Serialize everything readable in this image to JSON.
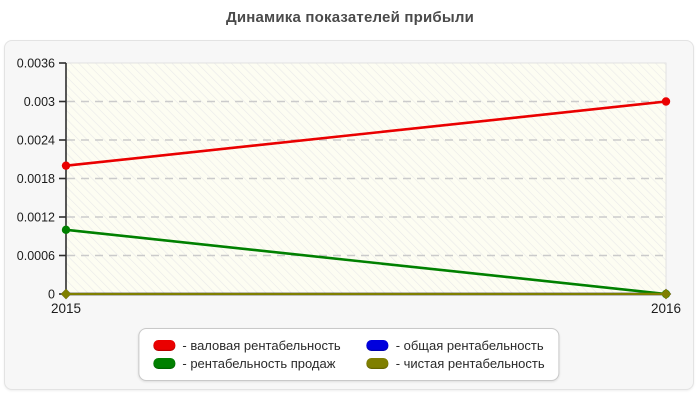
{
  "title": "Динамика показателей прибыли",
  "chart_data": {
    "type": "line",
    "x": [
      2015,
      2016
    ],
    "x_tick_labels": [
      "2015",
      "2016"
    ],
    "series": [
      {
        "name": "валовая рентабельность",
        "values": [
          0.002,
          0.003
        ],
        "color": "#ea0000",
        "marker": "circle"
      },
      {
        "name": "общая рентабельность",
        "values": [
          0,
          0
        ],
        "color": "#0000dd",
        "marker": "diamond"
      },
      {
        "name": "рентабельность продаж",
        "values": [
          0.001,
          0
        ],
        "color": "#008000",
        "marker": "circle"
      },
      {
        "name": "чистая рентабельность",
        "values": [
          0,
          0
        ],
        "color": "#7f7f00",
        "marker": "diamond"
      }
    ],
    "ylim": [
      0,
      0.0036
    ],
    "yticks": [
      0,
      0.0006,
      0.0012,
      0.0018,
      0.0024,
      0.003,
      0.0036
    ],
    "ytick_labels": [
      "0",
      "0.0006",
      "0.0012",
      "0.0018",
      "0.0024",
      "0.003",
      "0.0036"
    ],
    "grid": "horizontal dashed",
    "legend_position": "bottom"
  },
  "legend": {
    "items": [
      {
        "label": "- валовая рентабельность",
        "color": "#ea0000"
      },
      {
        "label": "- общая рентабельность",
        "color": "#0000dd"
      },
      {
        "label": "- рентабельность продаж",
        "color": "#008000"
      },
      {
        "label": "- чистая рентабельность",
        "color": "#7f7f00"
      }
    ]
  },
  "colors": {
    "title": "#4a4a4a",
    "panel_bg": "#f7f7f7",
    "panel_border": "#e3e3e3",
    "plot_bg": "#fdfdf2",
    "plot_hatch": "#e9e9e9",
    "plot_border": "#e2e2e2",
    "grid": "#cbcbcb",
    "axis": "#2e2e2e"
  }
}
